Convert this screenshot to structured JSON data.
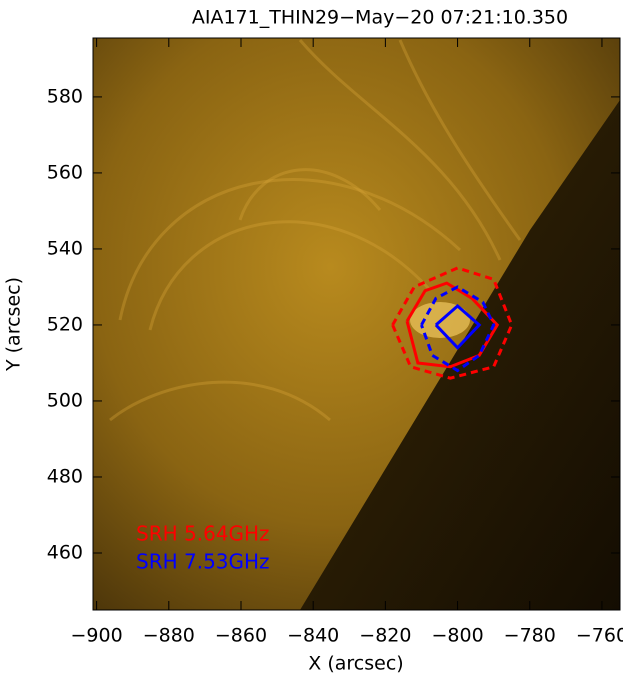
{
  "chart_data": {
    "type": "contour",
    "title": "AIA171_THIN29−May−20  07:21:10.350",
    "x_label": "X (arcsec)",
    "y_label": "Y (arcsec)",
    "xlim": [
      -901,
      -755
    ],
    "ylim": [
      445,
      595.5
    ],
    "xticks": [
      {
        "value": -900,
        "label": "−900"
      },
      {
        "value": -880,
        "label": "−880"
      },
      {
        "value": -860,
        "label": "−860"
      },
      {
        "value": -840,
        "label": "−840"
      },
      {
        "value": -820,
        "label": "−820"
      },
      {
        "value": -800,
        "label": "−800"
      },
      {
        "value": -780,
        "label": "−780"
      },
      {
        "value": -760,
        "label": "−760"
      }
    ],
    "yticks": [
      460,
      480,
      500,
      520,
      540,
      560,
      580
    ],
    "series": [
      {
        "name": "SRH  5.64GHz",
        "color": "#ff0000",
        "contours": [
          {
            "style": "solid",
            "x": [
              -814,
              -809,
              -803,
              -796,
              -789,
              -794,
              -802,
              -811,
              -814
            ],
            "y": [
              521,
              529,
              531,
              527,
              520,
              512,
              509,
              510,
              521
            ]
          },
          {
            "style": "dashed",
            "x": [
              -818,
              -812,
              -800,
              -790,
              -785,
              -790,
              -802,
              -813,
              -818
            ],
            "y": [
              520,
              530,
              535,
              532,
              520,
              509,
              506,
              509,
              520
            ]
          }
        ]
      },
      {
        "name": "SRH  7.53GHz",
        "color": "#0000ff",
        "contours": [
          {
            "style": "solid",
            "x": [
              -806,
              -800,
              -794,
              -800,
              -806
            ],
            "y": [
              520,
              525,
              520,
              514,
              520
            ]
          },
          {
            "style": "dashed",
            "x": [
              -810,
              -806,
              -800,
              -793,
              -790,
              -794,
              -800,
              -807,
              -810
            ],
            "y": [
              520,
              527,
              530,
              526,
              520,
              512,
              508,
              512,
              520
            ]
          }
        ]
      }
    ]
  }
}
